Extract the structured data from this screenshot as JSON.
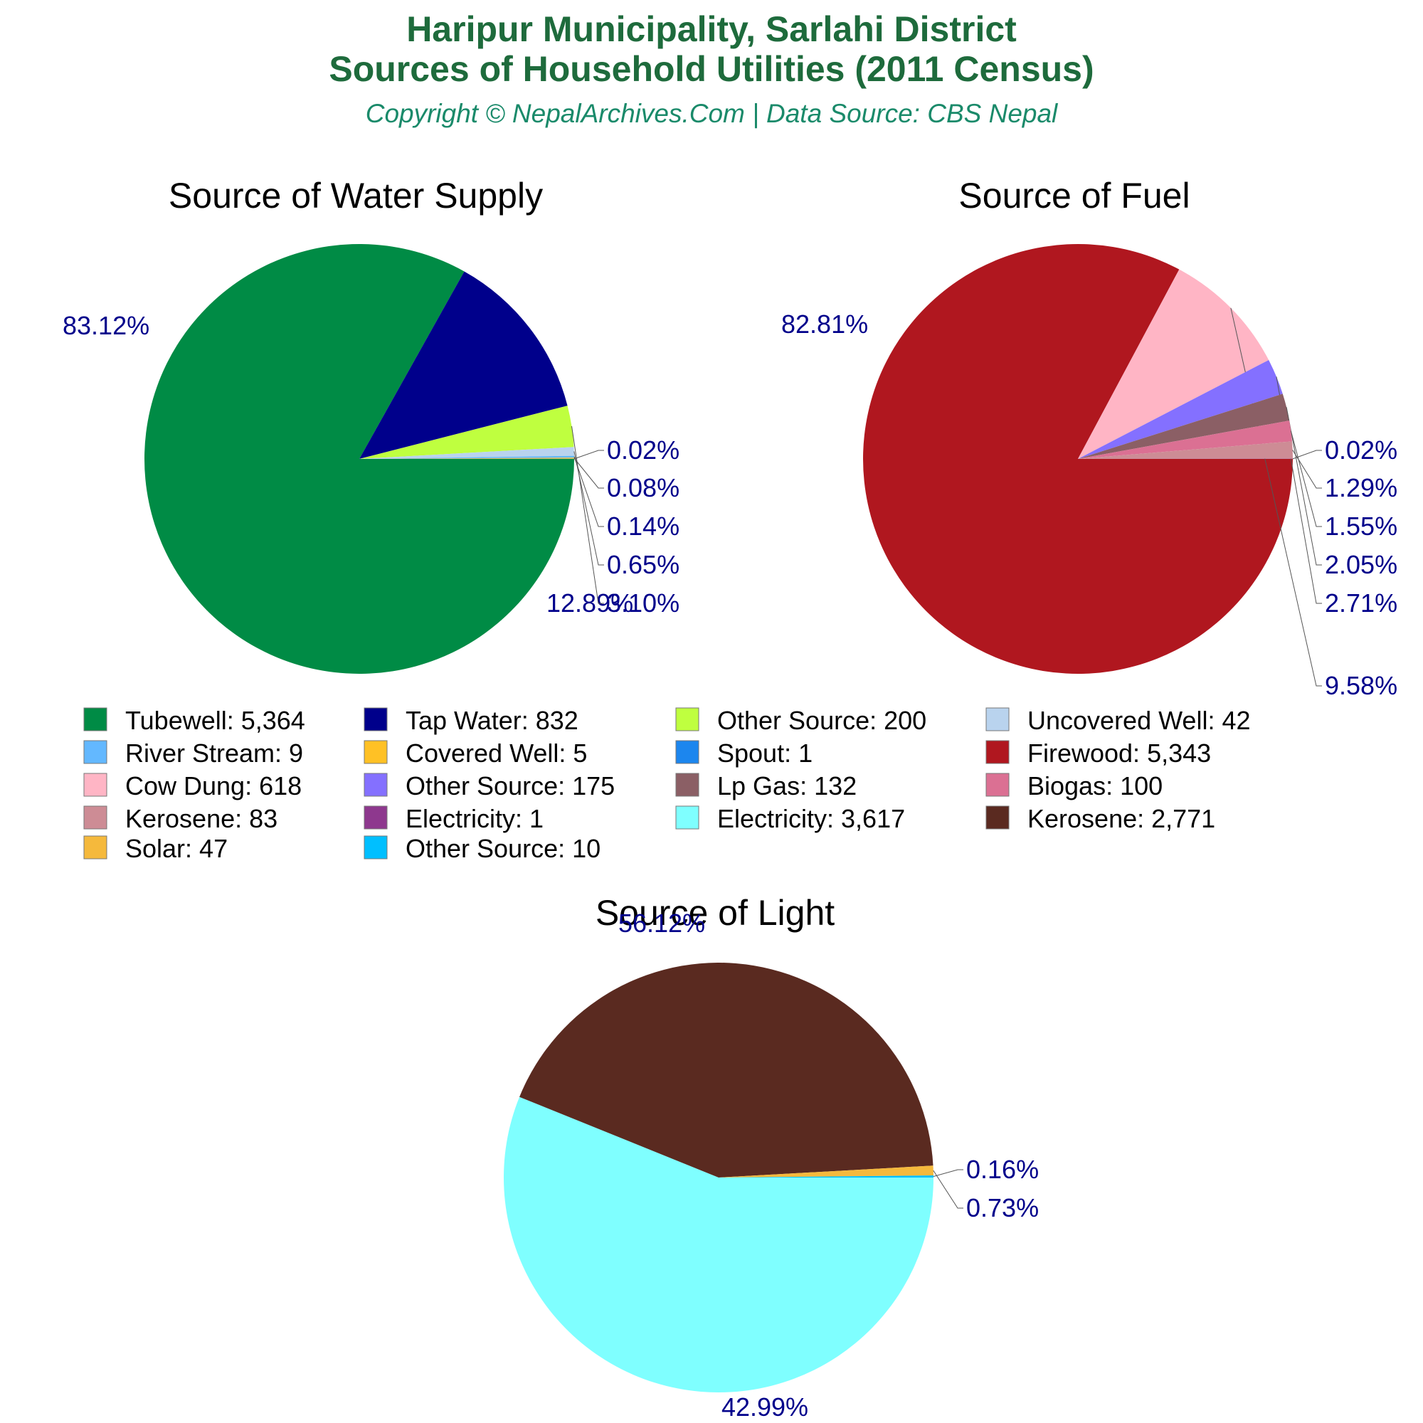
{
  "header": {
    "title_line1": "Haripur Municipality, Sarlahi District",
    "title_line2": "Sources of Household Utilities (2011 Census)",
    "subtitle": "Copyright © NepalArchives.Com | Data Source: CBS Nepal",
    "title_color": "#1E6B3C",
    "subtitle_color": "#1A8A6A"
  },
  "label_color": "#00008B",
  "chart_data": [
    {
      "type": "pie",
      "title": "Source of Water Supply",
      "slices": [
        {
          "name": "Tubewell",
          "value": 5364,
          "pct_label": "83.12%",
          "color": "#008B45"
        },
        {
          "name": "Tap Water",
          "value": 832,
          "pct_label": "12.89%",
          "color": "#00008B"
        },
        {
          "name": "Other Source",
          "value": 200,
          "pct_label": "3.10%",
          "color": "#BFFF3F"
        },
        {
          "name": "Uncovered Well",
          "value": 42,
          "pct_label": "0.65%",
          "color": "#B9D3EE"
        },
        {
          "name": "River Stream",
          "value": 9,
          "pct_label": "0.14%",
          "color": "#63B8FF"
        },
        {
          "name": "Covered Well",
          "value": 5,
          "pct_label": "0.08%",
          "color": "#FFC125"
        },
        {
          "name": "Spout",
          "value": 1,
          "pct_label": "0.02%",
          "color": "#1C86EE"
        }
      ]
    },
    {
      "type": "pie",
      "title": "Source of Fuel",
      "slices": [
        {
          "name": "Firewood",
          "value": 5343,
          "pct_label": "82.81%",
          "color": "#B0171F"
        },
        {
          "name": "Cow Dung",
          "value": 618,
          "pct_label": "9.58%",
          "color": "#FFB5C5"
        },
        {
          "name": "Other Source",
          "value": 175,
          "pct_label": "2.71%",
          "color": "#8470FF"
        },
        {
          "name": "Lp Gas",
          "value": 132,
          "pct_label": "2.05%",
          "color": "#8B5F65"
        },
        {
          "name": "Biogas",
          "value": 100,
          "pct_label": "1.55%",
          "color": "#DB7093"
        },
        {
          "name": "Kerosene",
          "value": 83,
          "pct_label": "1.29%",
          "color": "#CD8C95"
        },
        {
          "name": "Electricity",
          "value": 1,
          "pct_label": "0.02%",
          "color": "#8E388E"
        }
      ]
    },
    {
      "type": "pie",
      "title": "Source of Light",
      "slices": [
        {
          "name": "Electricity",
          "value": 3617,
          "pct_label": "56.12%",
          "color": "#7FFFFF"
        },
        {
          "name": "Kerosene",
          "value": 2771,
          "pct_label": "42.99%",
          "color": "#5A2A20"
        },
        {
          "name": "Solar",
          "value": 47,
          "pct_label": "0.73%",
          "color": "#F5B93C"
        },
        {
          "name": "Other Source",
          "value": 10,
          "pct_label": "0.16%",
          "color": "#00BFFF"
        }
      ]
    }
  ],
  "legend": [
    {
      "text": "Tubewell: 5,364",
      "color": "#008B45"
    },
    {
      "text": "Tap Water: 832",
      "color": "#00008B"
    },
    {
      "text": "Other Source: 200",
      "color": "#BFFF3F"
    },
    {
      "text": "Uncovered Well: 42",
      "color": "#B9D3EE"
    },
    {
      "text": "River Stream: 9",
      "color": "#63B8FF"
    },
    {
      "text": "Covered Well: 5",
      "color": "#FFC125"
    },
    {
      "text": "Spout: 1",
      "color": "#1C86EE"
    },
    {
      "text": "Firewood: 5,343",
      "color": "#B0171F"
    },
    {
      "text": "Cow Dung: 618",
      "color": "#FFB5C5"
    },
    {
      "text": "Other Source: 175",
      "color": "#8470FF"
    },
    {
      "text": "Lp Gas: 132",
      "color": "#8B5F65"
    },
    {
      "text": "Biogas: 100",
      "color": "#DB7093"
    },
    {
      "text": "Kerosene: 83",
      "color": "#CD8C95"
    },
    {
      "text": "Electricity: 1",
      "color": "#8E388E"
    },
    {
      "text": "Electricity: 3,617",
      "color": "#7FFFFF"
    },
    {
      "text": "Kerosene: 2,771",
      "color": "#5A2A20"
    },
    {
      "text": "Solar: 47",
      "color": "#F5B93C"
    },
    {
      "text": "Other Source: 10",
      "color": "#00BFFF"
    }
  ]
}
